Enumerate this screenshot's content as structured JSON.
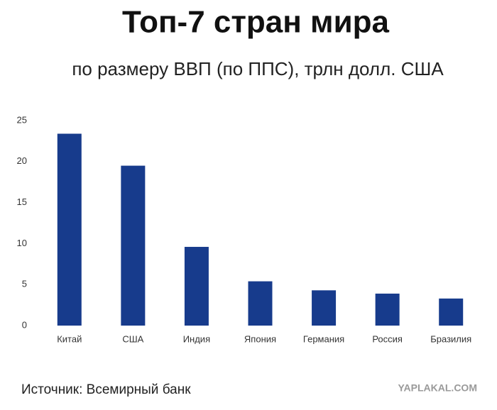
{
  "chart_data": {
    "type": "bar",
    "title": "Топ-7 стран мира",
    "subtitle": "по размеру ВВП (по ППС), трлн долл. США",
    "categories": [
      "Китай",
      "США",
      "Индия",
      "Япония",
      "Германия",
      "Россия",
      "Бразилия"
    ],
    "values": [
      23.4,
      19.5,
      9.6,
      5.4,
      4.3,
      3.9,
      3.3
    ],
    "color": "#173b8c",
    "ylim": [
      0,
      25
    ],
    "yticks": [
      0,
      5,
      10,
      15,
      20,
      25
    ],
    "grid": false
  },
  "source": "Источник:  Всемирный банк",
  "watermark": "YAPLAKAL.COM"
}
